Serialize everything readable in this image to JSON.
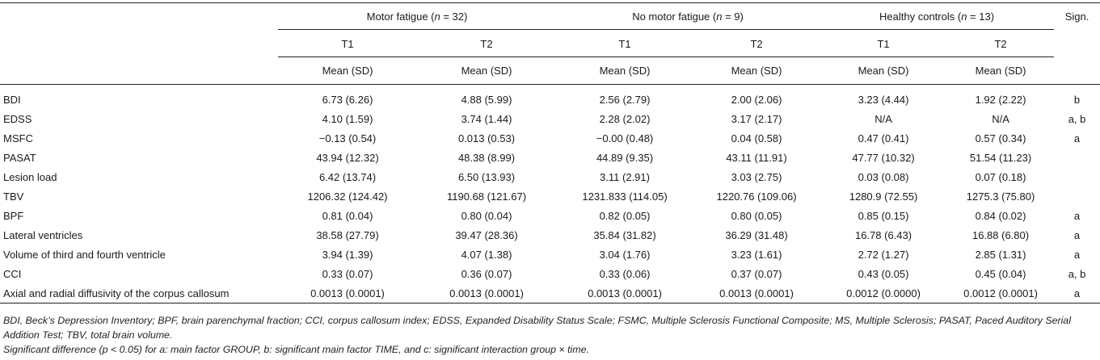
{
  "header": {
    "groups": [
      {
        "name": "Motor fatigue",
        "n_prefix": " (",
        "n_sym": "n",
        "n_suffix": " = 32)"
      },
      {
        "name": "No motor fatigue",
        "n_prefix": " (",
        "n_sym": "n",
        "n_suffix": " = 9)"
      },
      {
        "name": "Healthy controls",
        "n_prefix": " (",
        "n_sym": "n",
        "n_suffix": " = 13)"
      }
    ],
    "sign_label": "Sign.",
    "t1": "T1",
    "t2": "T2",
    "mean_sd": "Mean (SD)"
  },
  "rows": [
    {
      "label": "BDI",
      "v": [
        "6.73 (6.26)",
        "4.88 (5.99)",
        "2.56 (2.79)",
        "2.00 (2.06)",
        "3.23 (4.44)",
        "1.92 (2.22)"
      ],
      "sign": "b"
    },
    {
      "label": "EDSS",
      "v": [
        "4.10 (1.59)",
        "3.74 (1.44)",
        "2.28 (2.02)",
        "3.17 (2.17)",
        "N/A",
        "N/A"
      ],
      "sign": "a, b"
    },
    {
      "label": "MSFC",
      "v": [
        "−0.13 (0.54)",
        "0.013 (0.53)",
        "−0.00 (0.48)",
        "0.04 (0.58)",
        "0.47 (0.41)",
        "0.57 (0.34)"
      ],
      "sign": "a"
    },
    {
      "label": "PASAT",
      "v": [
        "43.94 (12.32)",
        "48.38 (8.99)",
        "44.89 (9.35)",
        "43.11 (11.91)",
        "47.77 (10.32)",
        "51.54 (11.23)"
      ],
      "sign": ""
    },
    {
      "label": "Lesion load",
      "v": [
        "6.42 (13.74)",
        "6.50 (13.93)",
        "3.11 (2.91)",
        "3.03 (2.75)",
        "0.03 (0.08)",
        "0.07 (0.18)"
      ],
      "sign": ""
    },
    {
      "label": "TBV",
      "v": [
        "1206.32 (124.42)",
        "1190.68 (121.67)",
        "1231.833 (114.05)",
        "1220.76 (109.06)",
        "1280.9 (72.55)",
        "1275.3 (75.80)"
      ],
      "sign": ""
    },
    {
      "label": "BPF",
      "v": [
        "0.81 (0.04)",
        "0.80 (0.04)",
        "0.82 (0.05)",
        "0.80 (0.05)",
        "0.85 (0.15)",
        "0.84 (0.02)"
      ],
      "sign": "a"
    },
    {
      "label": "Lateral ventricles",
      "v": [
        "38.58 (27.79)",
        "39.47 (28.36)",
        "35.84 (31.82)",
        "36.29 (31.48)",
        "16.78 (6.43)",
        "16.88 (6.80)"
      ],
      "sign": "a"
    },
    {
      "label": "Volume of third and fourth ventricle",
      "v": [
        "3.94 (1.39)",
        "4.07 (1.38)",
        "3.04 (1.76)",
        "3.23 (1.61)",
        "2.72 (1.27)",
        "2.85 (1.31)"
      ],
      "sign": "a"
    },
    {
      "label": "CCI",
      "v": [
        "0.33 (0.07)",
        "0.36 (0.07)",
        "0.33 (0.06)",
        "0.37 (0.07)",
        "0.43 (0.05)",
        "0.45 (0.04)"
      ],
      "sign": "a, b"
    },
    {
      "label": "Axial and radial diffusivity of the corpus callosum",
      "v": [
        "0.0013 (0.0001)",
        "0.0013 (0.0001)",
        "0.0013 (0.0001)",
        "0.0013 (0.0001)",
        "0.0012 (0.0000)",
        "0.0012 (0.0001)"
      ],
      "sign": "a"
    }
  ],
  "notes": {
    "abbreviations": "BDI, Beck’s Depression Inventory; BPF, brain parenchymal fraction; CCI, corpus callosum index; EDSS, Expanded Disability Status Scale; FSMC, Multiple Sclerosis Functional Composite; MS, Multiple Sclerosis; PASAT, Paced Auditory Serial Addition Test; TBV, total brain volume.",
    "significance": "Significant difference (p < 0.05) for a: main factor GROUP, b: significant main factor TIME, and c: significant interaction group × time."
  }
}
